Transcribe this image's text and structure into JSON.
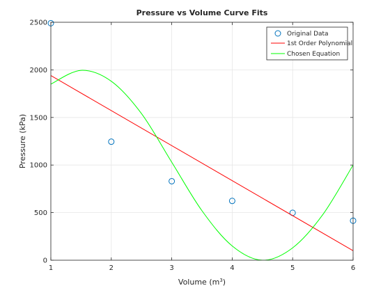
{
  "chart_data": {
    "type": "scatter",
    "title": "Pressure vs Volume Curve Fits",
    "xlabel": "Volume (m",
    "xlabel_superscript": "3",
    "xlabel_suffix": ")",
    "ylabel": "Pressure (kPa)",
    "xlim": [
      1,
      6
    ],
    "ylim": [
      0,
      2500
    ],
    "x_ticks": [
      "1",
      "2",
      "3",
      "4",
      "5",
      "6"
    ],
    "y_ticks": [
      "0",
      "500",
      "1000",
      "1500",
      "2000",
      "2500"
    ],
    "grid": true,
    "legend_position": "top-right",
    "series": [
      {
        "name": "Original Data",
        "kind": "markers",
        "color": "#0072bd",
        "x": [
          1,
          2,
          3,
          4,
          5,
          6
        ],
        "y": [
          2490,
          1245,
          830,
          623,
          498,
          415
        ]
      },
      {
        "name": "1st Order Polynomial",
        "kind": "line",
        "color": "#ff0000",
        "x": [
          1,
          6
        ],
        "y": [
          1940,
          100
        ]
      },
      {
        "name": "Chosen Equation",
        "kind": "curve",
        "color": "#00ff00",
        "x": [
          1,
          1.5,
          2,
          2.5,
          3,
          3.5,
          4,
          4.5,
          5,
          5.5,
          6
        ],
        "y": [
          1850,
          1995,
          1880,
          1540,
          1030,
          520,
          150,
          0,
          130,
          480,
          1000
        ]
      }
    ]
  }
}
